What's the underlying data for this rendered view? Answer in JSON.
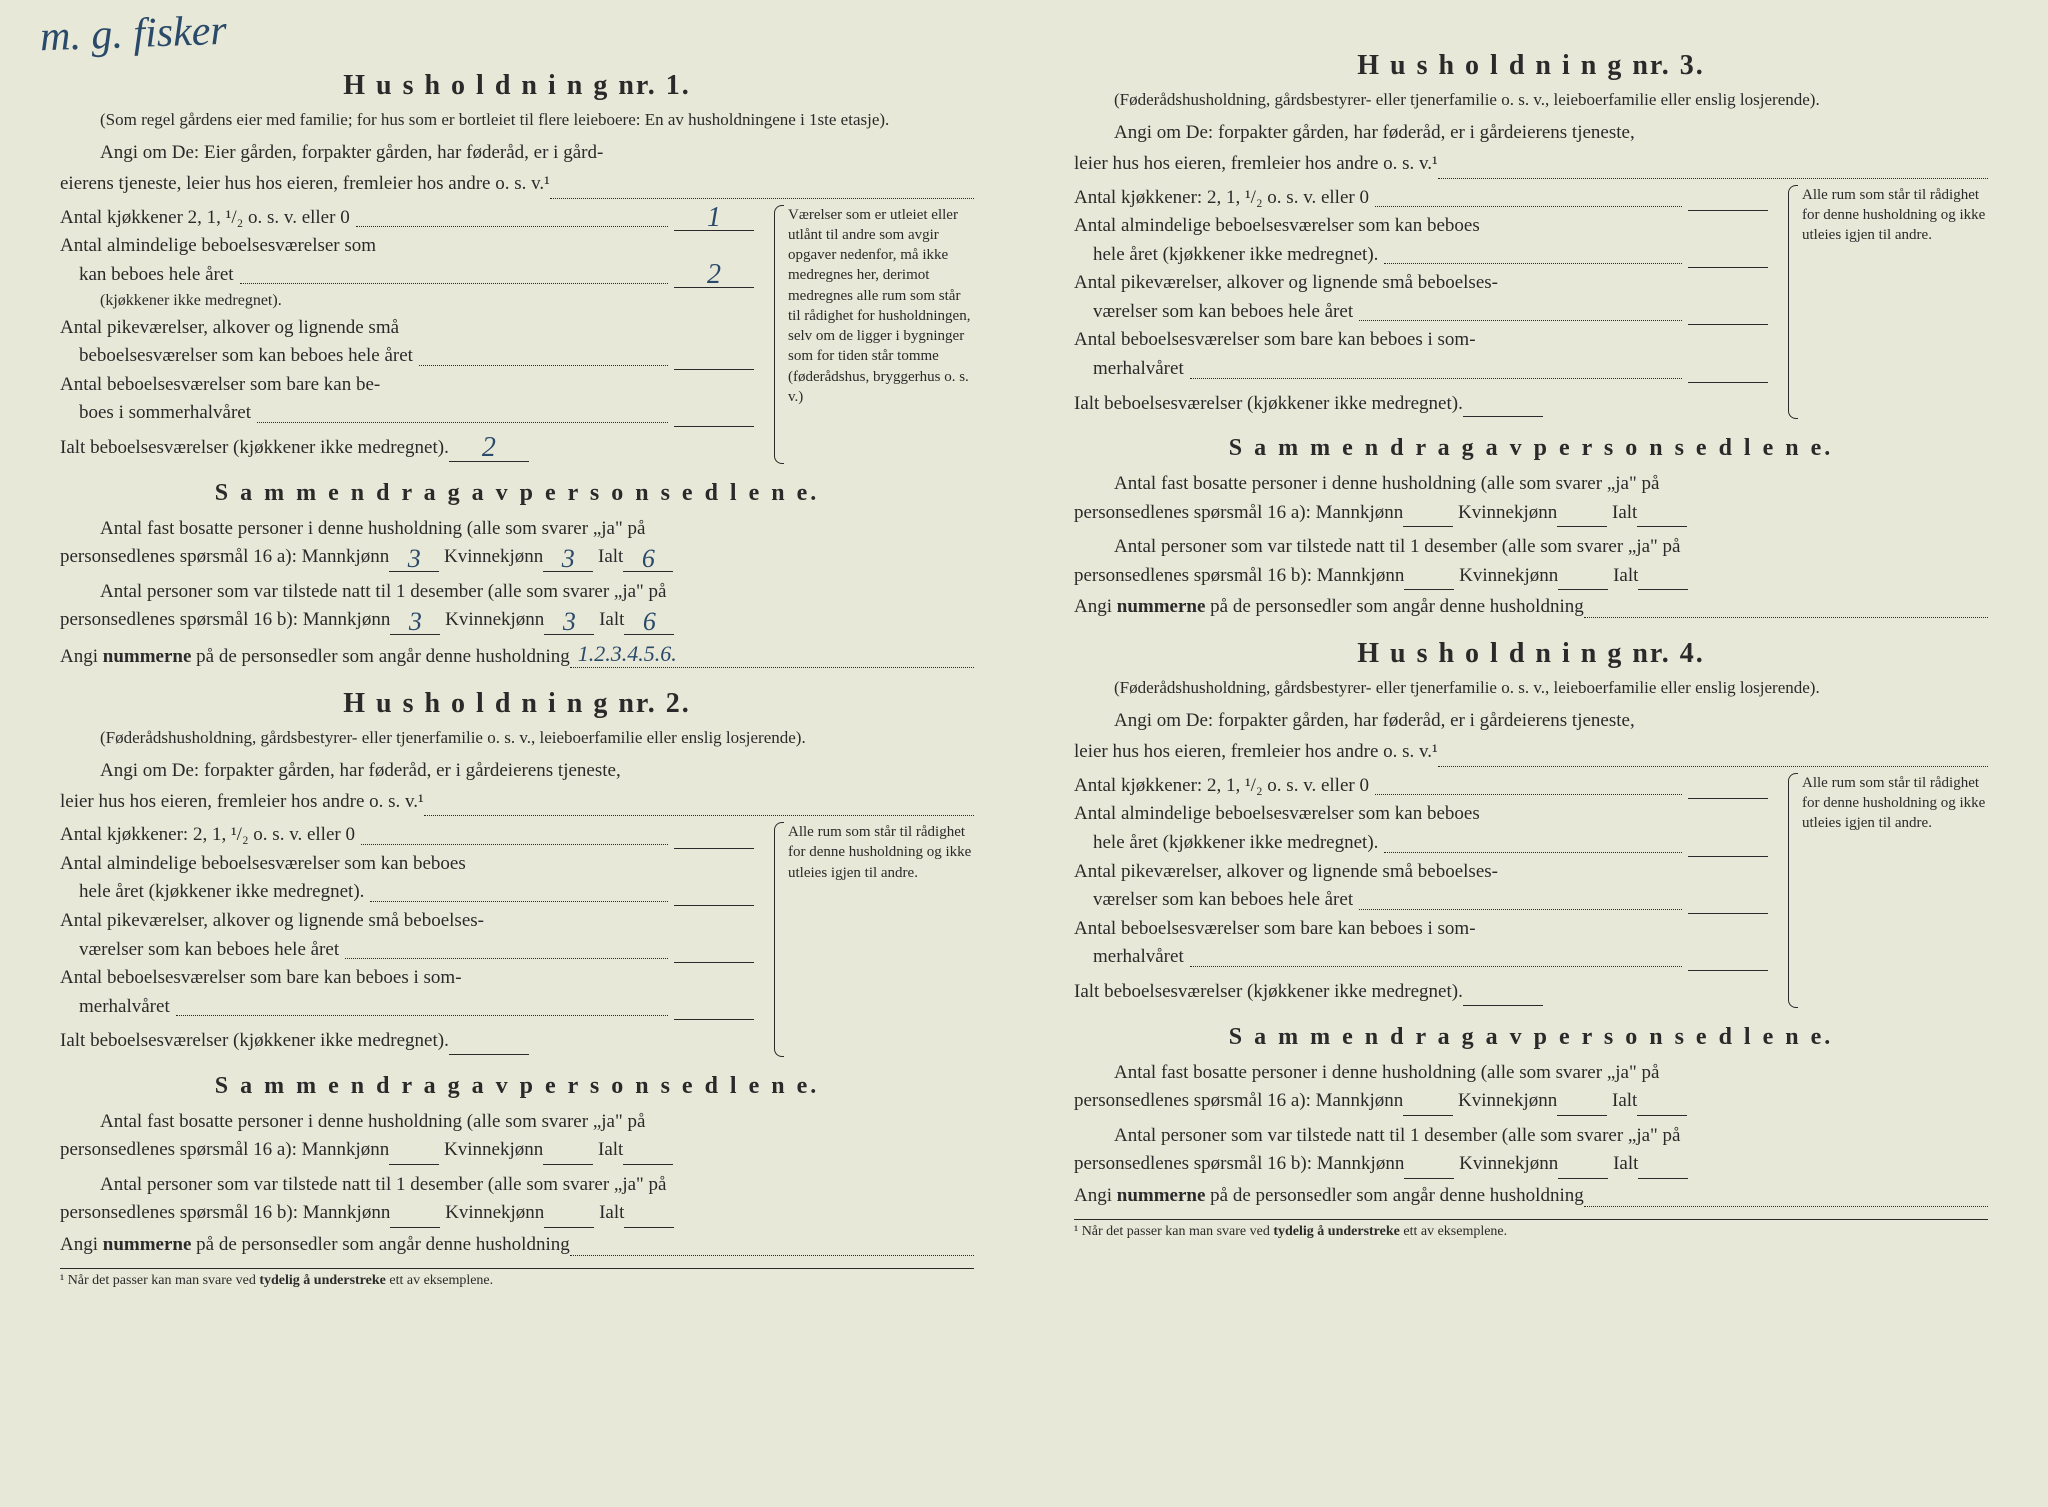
{
  "handwriting_top": "m. g. fisker",
  "households": [
    {
      "title": "H u s h o l d n i n g  nr.  1.",
      "subtitle": "(Som regel gårdens eier med familie; for hus som er bortleiet til flere leieboere: En av husholdningene i 1ste etasje).",
      "angi": "Angi om De: Eier gården, forpakter gården, har føderåd, er i gård-",
      "angi2": "eierens tjeneste, leier hus hos eieren, fremleier hos andre o. s. v.¹",
      "rows": {
        "kjokken_label": "Antal kjøkkener 2, 1, ¹/₂ o. s. v. eller 0",
        "kjokken_val": "1",
        "beboelse_label1": "Antal almindelige beboelsesværelser som",
        "beboelse_label2": "kan beboes hele året",
        "beboelse_val": "2",
        "beboelse_note": "(kjøkkener ikke medregnet).",
        "pike_label1": "Antal pikeværelser, alkover og lignende små",
        "pike_label2": "beboelsesværelser som kan beboes hele året",
        "pike_val": "",
        "sommer_label1": "Antal beboelsesværelser som bare kan be-",
        "sommer_label2": "boes i sommerhalvåret",
        "sommer_val": "",
        "ialt_label": "Ialt beboelsesværelser (kjøkkener ikke medregnet).",
        "ialt_val": "2"
      },
      "side_note": "Værelser som er utleiet eller utlånt til andre som avgir opgaver nedenfor, må ikke medregnes her, derimot medregnes alle rum som står til rådighet for husholdningen, selv om de ligger i bygninger som for tiden står tomme (føderådshus, bryggerhus o. s. v.)",
      "sammendrag_title": "S a m m e n d r a g  a v  p e r s o n s e d l e n e.",
      "s1": "Antal fast bosatte personer i denne husholdning (alle som svarer „ja\" på",
      "s2_label": "personsedlenes spørsmål 16 a): Mannkjønn",
      "s2_m": "3",
      "s2_k_label": "Kvinnekjønn",
      "s2_k": "3",
      "s2_i_label": "Ialt",
      "s2_i": "6",
      "s3": "Antal personer som var tilstede natt til 1 desember (alle som svarer „ja\" på",
      "s4_label": "personsedlenes spørsmål 16 b): Mannkjønn",
      "s4_m": "3",
      "s4_k_label": "Kvinnekjønn",
      "s4_k": "3",
      "s4_i_label": "Ialt",
      "s4_i": "6",
      "angi_num_label": "Angi ",
      "angi_num_bold": "nummerne",
      "angi_num_rest": " på de personsedler som angår denne husholdning",
      "angi_num_val": "1.2.3.4.5.6."
    },
    {
      "title": "H u s h o l d n i n g  nr.  2.",
      "subtitle": "(Føderådshusholdning, gårdsbestyrer- eller tjenerfamilie o. s. v., leieboerfamilie eller enslig losjerende).",
      "angi": "Angi om De: forpakter gården, har føderåd, er i gårdeierens tjeneste,",
      "angi2": "leier hus hos eieren, fremleier hos andre o. s. v.¹",
      "rows": {
        "kjokken_label": "Antal kjøkkener: 2, 1, ¹/₂ o. s. v. eller 0",
        "kjokken_val": "",
        "beboelse_label1": "Antal almindelige beboelsesværelser som kan beboes",
        "beboelse_label2": "hele året (kjøkkener ikke medregnet).",
        "beboelse_val": "",
        "pike_label1": "Antal pikeværelser, alkover og lignende små beboelses-",
        "pike_label2": "værelser som kan beboes hele året",
        "pike_val": "",
        "sommer_label1": "Antal beboelsesværelser som bare kan beboes i som-",
        "sommer_label2": "merhalvåret",
        "sommer_val": "",
        "ialt_label": "Ialt beboelsesværelser (kjøkkener ikke medregnet).",
        "ialt_val": ""
      },
      "side_note": "Alle rum som står til rådighet for denne husholdning og ikke utleies igjen til andre.",
      "sammendrag_title": "S a m m e n d r a g  a v  p e r s o n s e d l e n e.",
      "s1": "Antal fast bosatte personer i denne husholdning (alle som svarer „ja\" på",
      "s2_label": "personsedlenes spørsmål 16 a): Mannkjønn",
      "s2_m": "",
      "s2_k_label": "Kvinnekjønn",
      "s2_k": "",
      "s2_i_label": "Ialt",
      "s2_i": "",
      "s3": "Antal personer som var tilstede natt til 1 desember (alle som svarer „ja\" på",
      "s4_label": "personsedlenes spørsmål 16 b): Mannkjønn",
      "s4_m": "",
      "s4_k_label": "Kvinnekjønn",
      "s4_k": "",
      "s4_i_label": "Ialt",
      "s4_i": "",
      "angi_num_label": "Angi ",
      "angi_num_bold": "nummerne",
      "angi_num_rest": " på de personsedler som angår denne husholdning",
      "angi_num_val": ""
    },
    {
      "title": "H u s h o l d n i n g  nr.  3.",
      "subtitle": "(Føderådshusholdning, gårdsbestyrer- eller tjenerfamilie o. s. v., leieboerfamilie eller enslig losjerende).",
      "angi": "Angi om De: forpakter gården, har føderåd, er i gårdeierens tjeneste,",
      "angi2": "leier hus hos eieren, fremleier hos andre o. s. v.¹",
      "rows": {
        "kjokken_label": "Antal kjøkkener: 2, 1, ¹/₂ o. s. v. eller 0",
        "kjokken_val": "",
        "beboelse_label1": "Antal almindelige beboelsesværelser som kan beboes",
        "beboelse_label2": "hele året (kjøkkener ikke medregnet).",
        "beboelse_val": "",
        "pike_label1": "Antal pikeværelser, alkover og lignende små beboelses-",
        "pike_label2": "værelser som kan beboes hele året",
        "pike_val": "",
        "sommer_label1": "Antal beboelsesværelser som bare kan beboes i som-",
        "sommer_label2": "merhalvåret",
        "sommer_val": "",
        "ialt_label": "Ialt beboelsesværelser (kjøkkener ikke medregnet).",
        "ialt_val": ""
      },
      "side_note": "Alle rum som står til rådighet for denne husholdning og ikke utleies igjen til andre.",
      "sammendrag_title": "S a m m e n d r a g  a v  p e r s o n s e d l e n e.",
      "s1": "Antal fast bosatte personer i denne husholdning (alle som svarer „ja\" på",
      "s2_label": "personsedlenes spørsmål 16 a): Mannkjønn",
      "s2_m": "",
      "s2_k_label": "Kvinnekjønn",
      "s2_k": "",
      "s2_i_label": "Ialt",
      "s2_i": "",
      "s3": "Antal personer som var tilstede natt til 1 desember (alle som svarer „ja\" på",
      "s4_label": "personsedlenes spørsmål 16 b): Mannkjønn",
      "s4_m": "",
      "s4_k_label": "Kvinnekjønn",
      "s4_k": "",
      "s4_i_label": "Ialt",
      "s4_i": "",
      "angi_num_label": "Angi ",
      "angi_num_bold": "nummerne",
      "angi_num_rest": " på de personsedler som angår denne husholdning",
      "angi_num_val": ""
    },
    {
      "title": "H u s h o l d n i n g  nr.  4.",
      "subtitle": "(Føderådshusholdning, gårdsbestyrer- eller tjenerfamilie o. s. v., leieboerfamilie eller enslig losjerende).",
      "angi": "Angi om De: forpakter gården, har føderåd, er i gårdeierens tjeneste,",
      "angi2": "leier hus hos eieren, fremleier hos andre o. s. v.¹",
      "rows": {
        "kjokken_label": "Antal kjøkkener: 2, 1, ¹/₂ o. s. v. eller 0",
        "kjokken_val": "",
        "beboelse_label1": "Antal almindelige beboelsesværelser som kan beboes",
        "beboelse_label2": "hele året (kjøkkener ikke medregnet).",
        "beboelse_val": "",
        "pike_label1": "Antal pikeværelser, alkover og lignende små beboelses-",
        "pike_label2": "værelser som kan beboes hele året",
        "pike_val": "",
        "sommer_label1": "Antal beboelsesværelser som bare kan beboes i som-",
        "sommer_label2": "merhalvåret",
        "sommer_val": "",
        "ialt_label": "Ialt beboelsesværelser (kjøkkener ikke medregnet).",
        "ialt_val": ""
      },
      "side_note": "Alle rum som står til rådighet for denne husholdning og ikke utleies igjen til andre.",
      "sammendrag_title": "S a m m e n d r a g  a v  p e r s o n s e d l e n e.",
      "s1": "Antal fast bosatte personer i denne husholdning (alle som svarer „ja\" på",
      "s2_label": "personsedlenes spørsmål 16 a): Mannkjønn",
      "s2_m": "",
      "s2_k_label": "Kvinnekjønn",
      "s2_k": "",
      "s2_i_label": "Ialt",
      "s2_i": "",
      "s3": "Antal personer som var tilstede natt til 1 desember (alle som svarer „ja\" på",
      "s4_label": "personsedlenes spørsmål 16 b): Mannkjønn",
      "s4_m": "",
      "s4_k_label": "Kvinnekjønn",
      "s4_k": "",
      "s4_i_label": "Ialt",
      "s4_i": "",
      "angi_num_label": "Angi ",
      "angi_num_bold": "nummerne",
      "angi_num_rest": " på de personsedler som angår denne husholdning",
      "angi_num_val": ""
    }
  ],
  "footnote": "¹ Når det passer kan man svare ved tydelig å understreke ett av eksemplene.",
  "colors": {
    "background": "#e8e8d8",
    "text": "#2a2a2a",
    "handwriting": "#2a4a6a"
  }
}
